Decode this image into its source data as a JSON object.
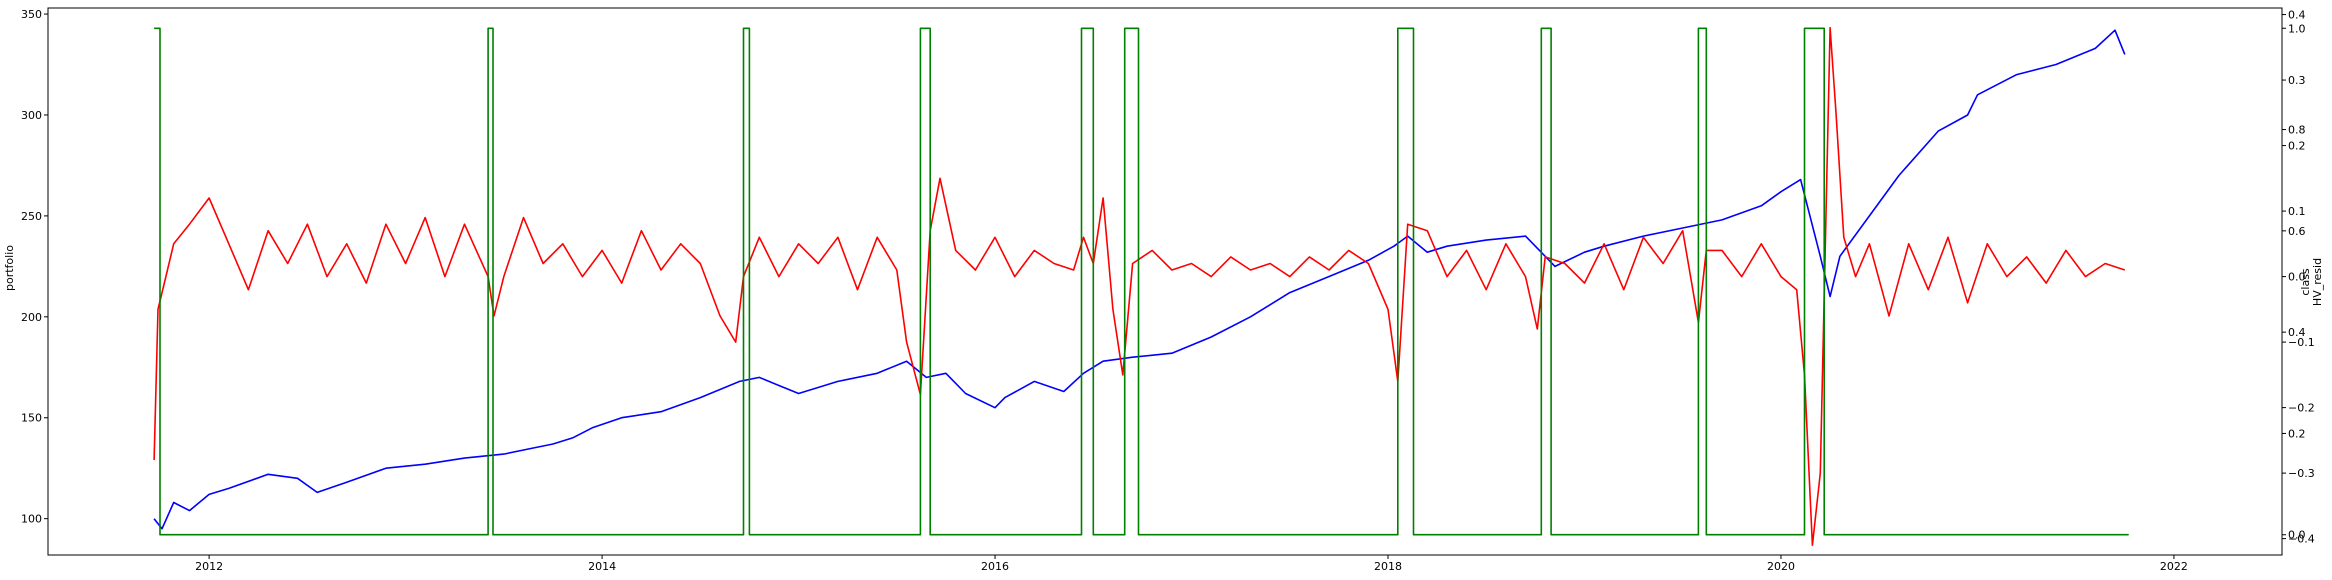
{
  "chart_data": {
    "type": "line",
    "title": "",
    "xlabel": "",
    "x_range": [
      2011.18,
      2022.55
    ],
    "x_ticks": [
      {
        "value": 2012,
        "label": "2012"
      },
      {
        "value": 2014,
        "label": "2014"
      },
      {
        "value": 2016,
        "label": "2016"
      },
      {
        "value": 2018,
        "label": "2018"
      },
      {
        "value": 2020,
        "label": "2020"
      },
      {
        "value": 2022,
        "label": "2022"
      }
    ],
    "y_left": {
      "label": "portfolio",
      "range": [
        82,
        353
      ],
      "ticks": [
        {
          "value": 100,
          "label": "100"
        },
        {
          "value": 150,
          "label": "150"
        },
        {
          "value": 200,
          "label": "200"
        },
        {
          "value": 250,
          "label": "250"
        },
        {
          "value": 300,
          "label": "300"
        },
        {
          "value": 350,
          "label": "350"
        }
      ]
    },
    "y_right_resid": {
      "label": "HV_resid",
      "range": [
        -0.425,
        0.41
      ],
      "ticks": [
        {
          "value": 0.4,
          "label": "0.4"
        },
        {
          "value": 0.3,
          "label": "0.3"
        },
        {
          "value": 0.2,
          "label": "0.2"
        },
        {
          "value": 0.1,
          "label": "0.1"
        },
        {
          "value": 0.0,
          "label": "0.0"
        },
        {
          "value": -0.1,
          "label": "−0.1"
        },
        {
          "value": -0.2,
          "label": "−0.2"
        },
        {
          "value": -0.3,
          "label": "−0.3"
        },
        {
          "value": -0.4,
          "label": "−0.4"
        }
      ]
    },
    "y_right_class": {
      "label": "class",
      "range": [
        -0.04,
        1.04
      ],
      "ticks": [
        {
          "value": 1.0,
          "label": "1.0"
        },
        {
          "value": 0.8,
          "label": "0.8"
        },
        {
          "value": 0.6,
          "label": "0.6"
        },
        {
          "value": 0.4,
          "label": "0.4"
        },
        {
          "value": 0.2,
          "label": "0.2"
        },
        {
          "value": 0.0,
          "label": "0.0"
        }
      ]
    },
    "colors": {
      "portfolio": "#0000ff",
      "resid": "#ff0000",
      "class": "#008000"
    },
    "series": [
      {
        "key": "portfolio",
        "axis": "y_left",
        "color": "#0000ff",
        "x": [
          2011.72,
          2011.76,
          2011.82,
          2011.9,
          2012.0,
          2012.1,
          2012.3,
          2012.45,
          2012.55,
          2012.7,
          2012.9,
          2013.1,
          2013.3,
          2013.5,
          2013.65,
          2013.75,
          2013.85,
          2013.95,
          2014.1,
          2014.3,
          2014.5,
          2014.7,
          2014.8,
          2014.9,
          2015.0,
          2015.2,
          2015.4,
          2015.55,
          2015.65,
          2015.75,
          2015.85,
          2016.0,
          2016.05,
          2016.2,
          2016.35,
          2016.45,
          2016.55,
          2016.7,
          2016.9,
          2017.1,
          2017.3,
          2017.5,
          2017.7,
          2017.9,
          2018.03,
          2018.1,
          2018.2,
          2018.3,
          2018.5,
          2018.7,
          2018.85,
          2019.0,
          2019.1,
          2019.3,
          2019.5,
          2019.7,
          2019.9,
          2020.0,
          2020.1,
          2020.2,
          2020.25,
          2020.3,
          2020.45,
          2020.6,
          2020.8,
          2020.95,
          2021.0,
          2021.2,
          2021.4,
          2021.6,
          2021.7,
          2021.75
        ],
        "y": [
          100,
          95,
          108,
          104,
          112,
          115,
          122,
          120,
          113,
          118,
          125,
          127,
          130,
          132,
          135,
          137,
          140,
          145,
          150,
          153,
          160,
          168,
          170,
          166,
          162,
          168,
          172,
          178,
          170,
          172,
          162,
          155,
          160,
          168,
          163,
          172,
          178,
          180,
          182,
          190,
          200,
          212,
          220,
          228,
          235,
          240,
          232,
          235,
          238,
          240,
          225,
          232,
          235,
          240,
          244,
          248,
          255,
          262,
          268,
          230,
          210,
          230,
          250,
          270,
          292,
          300,
          310,
          320,
          325,
          333,
          342,
          330
        ]
      },
      {
        "key": "resid",
        "axis": "y_right_resid",
        "color": "#ff0000",
        "x": [
          2011.72,
          2011.74,
          2011.78,
          2011.82,
          2011.9,
          2012.0,
          2012.1,
          2012.2,
          2012.3,
          2012.4,
          2012.5,
          2012.6,
          2012.7,
          2012.8,
          2012.9,
          2013.0,
          2013.1,
          2013.2,
          2013.3,
          2013.42,
          2013.45,
          2013.5,
          2013.6,
          2013.7,
          2013.8,
          2013.9,
          2014.0,
          2014.1,
          2014.2,
          2014.3,
          2014.4,
          2014.5,
          2014.6,
          2014.68,
          2014.72,
          2014.8,
          2014.9,
          2015.0,
          2015.1,
          2015.2,
          2015.3,
          2015.4,
          2015.5,
          2015.55,
          2015.62,
          2015.67,
          2015.72,
          2015.8,
          2015.9,
          2016.0,
          2016.1,
          2016.2,
          2016.3,
          2016.4,
          2016.45,
          2016.5,
          2016.55,
          2016.6,
          2016.65,
          2016.7,
          2016.8,
          2016.9,
          2017.0,
          2017.1,
          2017.2,
          2017.3,
          2017.4,
          2017.5,
          2017.6,
          2017.7,
          2017.8,
          2017.9,
          2018.0,
          2018.05,
          2018.1,
          2018.2,
          2018.3,
          2018.4,
          2018.5,
          2018.6,
          2018.7,
          2018.76,
          2018.8,
          2018.9,
          2019.0,
          2019.1,
          2019.2,
          2019.3,
          2019.4,
          2019.5,
          2019.58,
          2019.62,
          2019.7,
          2019.8,
          2019.9,
          2020.0,
          2020.08,
          2020.12,
          2020.16,
          2020.2,
          2020.25,
          2020.28,
          2020.32,
          2020.38,
          2020.45,
          2020.55,
          2020.65,
          2020.75,
          2020.85,
          2020.95,
          2021.05,
          2021.15,
          2021.25,
          2021.35,
          2021.45,
          2021.55,
          2021.65,
          2021.75
        ],
        "y": [
          -0.28,
          -0.05,
          0.0,
          0.05,
          0.08,
          0.12,
          0.05,
          -0.02,
          0.07,
          0.02,
          0.08,
          0.0,
          0.05,
          -0.01,
          0.08,
          0.02,
          0.09,
          0.0,
          0.08,
          0.0,
          -0.06,
          0.0,
          0.09,
          0.02,
          0.05,
          0.0,
          0.04,
          -0.01,
          0.07,
          0.01,
          0.05,
          0.02,
          -0.06,
          -0.1,
          0.0,
          0.06,
          0.0,
          0.05,
          0.02,
          0.06,
          -0.02,
          0.06,
          0.01,
          -0.1,
          -0.18,
          0.07,
          0.15,
          0.04,
          0.01,
          0.06,
          0.0,
          0.04,
          0.02,
          0.01,
          0.06,
          0.02,
          0.12,
          -0.05,
          -0.15,
          0.02,
          0.04,
          0.01,
          0.02,
          0.0,
          0.03,
          0.01,
          0.02,
          0.0,
          0.03,
          0.01,
          0.04,
          0.02,
          -0.05,
          -0.16,
          0.08,
          0.07,
          0.0,
          0.04,
          -0.02,
          0.05,
          0.0,
          -0.08,
          0.03,
          0.02,
          -0.01,
          0.05,
          -0.02,
          0.06,
          0.02,
          0.07,
          -0.07,
          0.04,
          0.04,
          0.0,
          0.05,
          0.0,
          -0.02,
          -0.15,
          -0.41,
          -0.3,
          0.38,
          0.25,
          0.06,
          0.0,
          0.05,
          -0.06,
          0.05,
          -0.02,
          0.06,
          -0.04,
          0.05,
          0.0,
          0.03,
          -0.01,
          0.04,
          0.0,
          0.02,
          0.01
        ]
      },
      {
        "key": "class",
        "axis": "y_right_class",
        "color": "#008000",
        "step": true,
        "intervals": [
          [
            2011.72,
            2011.75
          ],
          [
            2013.42,
            2013.445
          ],
          [
            2014.72,
            2014.75
          ],
          [
            2015.62,
            2015.67
          ],
          [
            2016.44,
            2016.5
          ],
          [
            2016.66,
            2016.73
          ],
          [
            2018.05,
            2018.13
          ],
          [
            2018.78,
            2018.83
          ],
          [
            2019.58,
            2019.62
          ],
          [
            2020.12,
            2020.22
          ]
        ],
        "x_end": 2021.77
      }
    ]
  }
}
